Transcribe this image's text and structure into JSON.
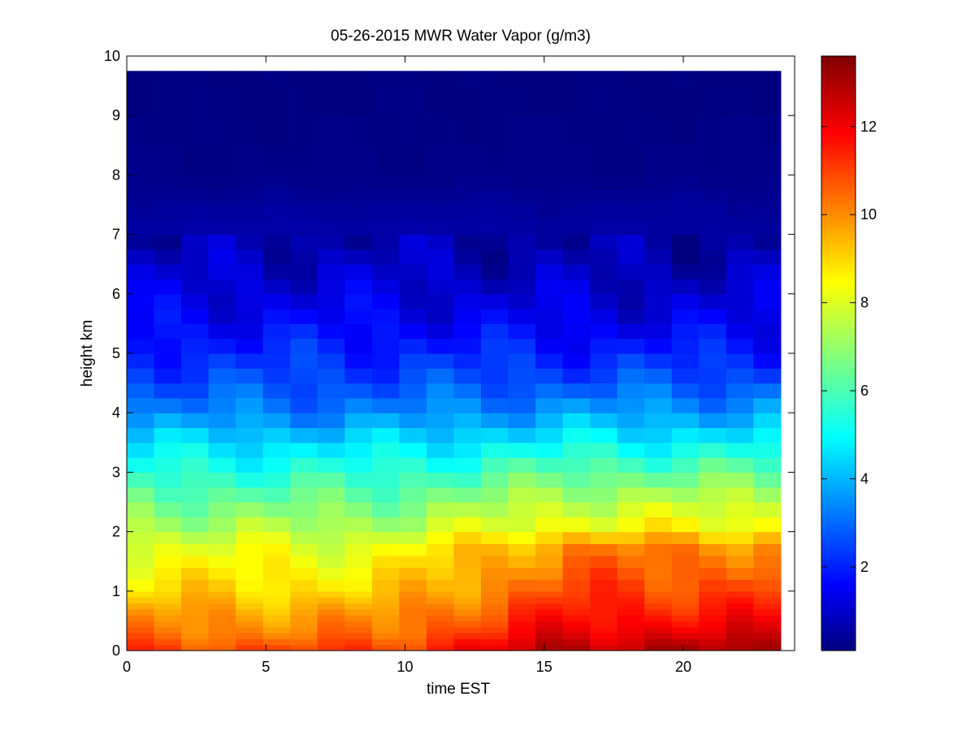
{
  "chart_data": {
    "type": "heatmap",
    "title": "05-26-2015 MWR Water Vapor (g/m3)",
    "xlabel": "time EST",
    "ylabel": "height km",
    "xlim": [
      0,
      24
    ],
    "ylim": [
      0,
      10
    ],
    "x_ticks": [
      "0",
      "5",
      "10",
      "15",
      "20"
    ],
    "y_ticks": [
      "0",
      "1",
      "2",
      "3",
      "4",
      "5",
      "6",
      "7",
      "8",
      "9",
      "10"
    ],
    "colorbar": {
      "colormap": "jet",
      "range": [
        0.1,
        13.6
      ],
      "ticks": [
        "2",
        "4",
        "6",
        "8",
        "10",
        "12"
      ]
    },
    "colormap_colors": [
      "#000080",
      "#0000ff",
      "#00ffff",
      "#ffff00",
      "#ff0000",
      "#800000"
    ],
    "data_extent": {
      "time_range": [
        0,
        23.5
      ],
      "height_range": [
        0,
        9.75
      ]
    },
    "time_steps": 24,
    "heights_km": [
      0,
      0.1,
      0.2,
      0.3,
      0.4,
      0.5,
      0.6,
      0.7,
      0.8,
      0.9,
      1.0,
      1.2,
      1.4,
      1.6,
      1.8,
      2.0,
      2.25,
      2.5,
      2.75,
      3.0,
      3.25,
      3.5,
      3.75,
      4.0,
      4.25,
      4.5,
      4.75,
      5.0,
      5.25,
      5.5,
      5.75,
      6.0,
      6.25,
      6.5,
      6.75,
      7.0,
      7.25,
      7.5,
      7.75,
      8.0,
      8.5,
      9.0,
      9.5,
      9.75
    ],
    "profile_g_m3": {
      "h_km": [
        0.0,
        0.3,
        0.6,
        1.0,
        1.5,
        1.8,
        2.0,
        2.5,
        3.0,
        3.5,
        4.0,
        4.5,
        5.0,
        5.5,
        6.0,
        6.5,
        7.0,
        7.5,
        8.0,
        9.75
      ],
      "morning": [
        11.0,
        10.2,
        9.8,
        9.0,
        8.4,
        8.0,
        7.5,
        6.5,
        5.5,
        4.5,
        3.3,
        2.6,
        2.1,
        1.6,
        1.2,
        0.9,
        0.6,
        0.4,
        0.2,
        0.1
      ],
      "evening": [
        13.0,
        12.2,
        11.6,
        11.0,
        10.4,
        10.0,
        8.6,
        7.6,
        6.3,
        4.9,
        3.7,
        2.7,
        2.0,
        1.4,
        1.0,
        0.7,
        0.5,
        0.4,
        0.2,
        0.1
      ]
    }
  }
}
